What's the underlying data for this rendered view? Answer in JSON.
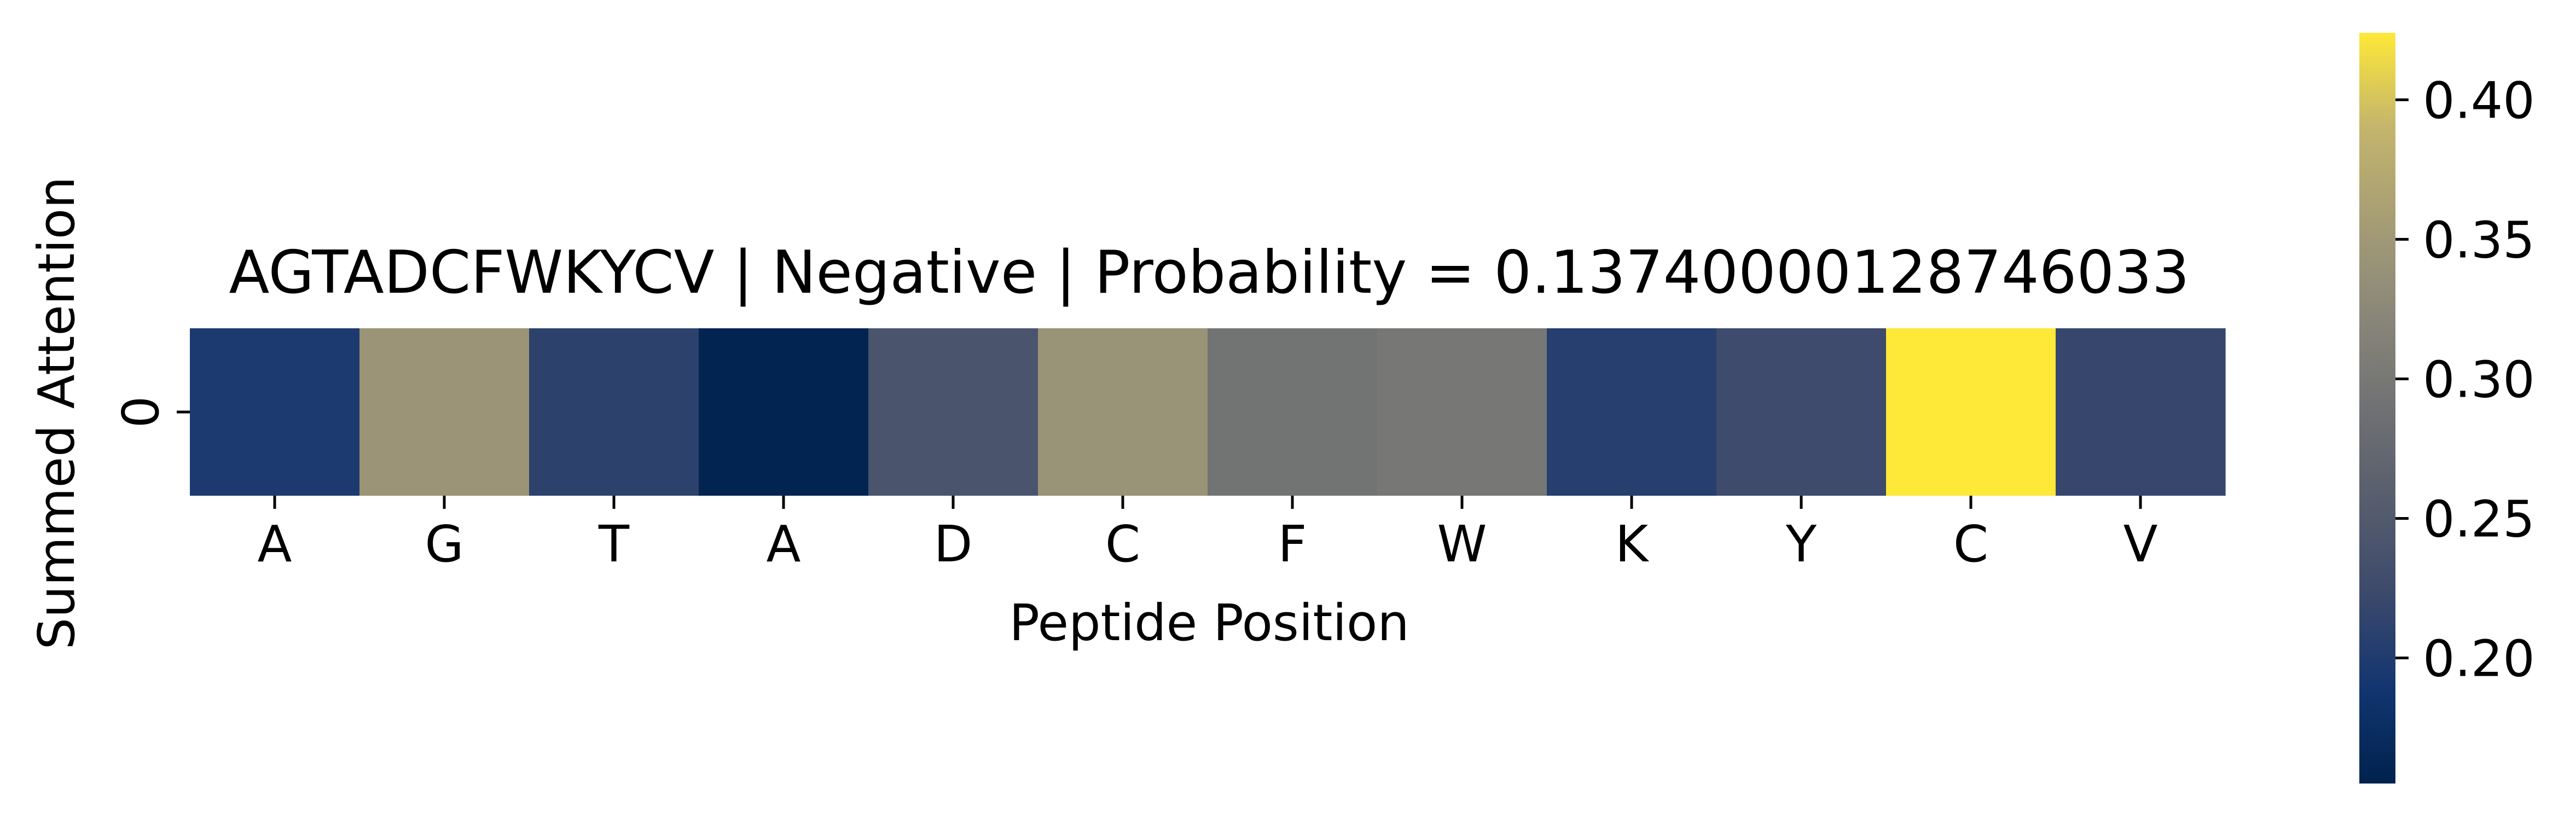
{
  "chart_data": {
    "type": "heatmap",
    "title": "AGTADCFWKYCV | Negative | Probability = 0.13740000128746033",
    "xlabel": "Peptide Position",
    "ylabel": "Summed Attention",
    "x_categories": [
      "A",
      "G",
      "T",
      "A",
      "D",
      "C",
      "F",
      "W",
      "K",
      "Y",
      "C",
      "V"
    ],
    "y_categories": [
      "0"
    ],
    "values": [
      [
        0.197,
        0.343,
        0.21,
        0.158,
        0.24,
        0.341,
        0.292,
        0.298,
        0.205,
        0.226,
        0.424,
        0.218
      ]
    ],
    "colormap": "cividis",
    "colorbar": {
      "vmin": 0.155,
      "vmax": 0.424,
      "ticks": [
        0.2,
        0.25,
        0.3,
        0.35,
        0.4
      ],
      "tick_labels": [
        "0.20",
        "0.25",
        "0.30",
        "0.35",
        "0.40"
      ]
    }
  }
}
